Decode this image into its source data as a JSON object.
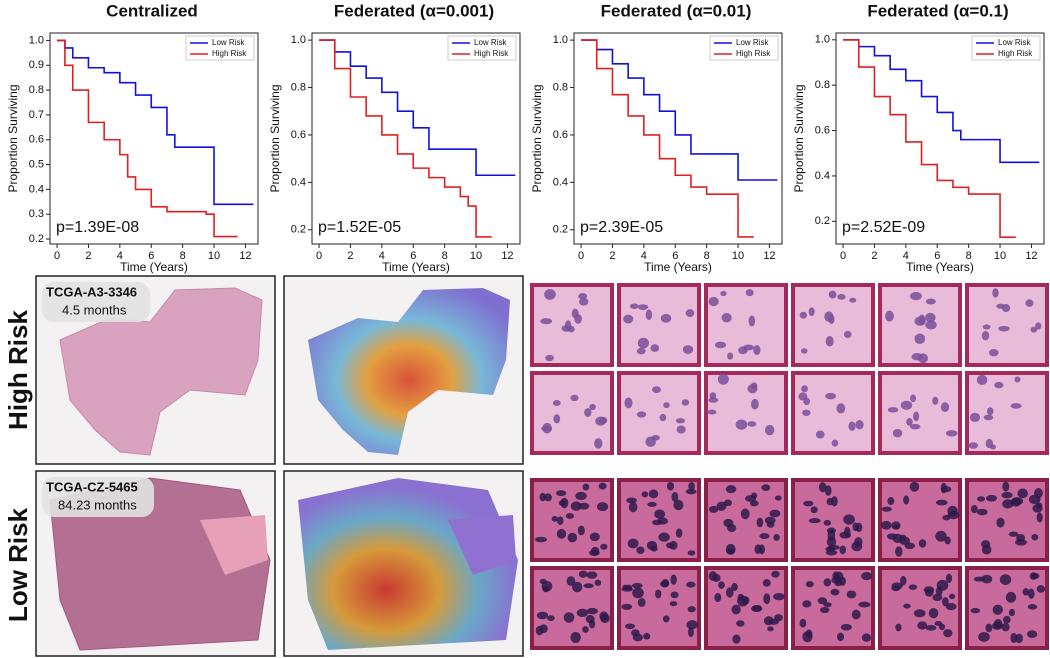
{
  "chart_data": [
    {
      "type": "line",
      "step": true,
      "title": "Centralized",
      "x_label": "Time (Years)",
      "y_label": "Proportion Surviving",
      "annotation": "p=1.39E-08",
      "legend": "upper right",
      "xlim": [
        -0.45,
        12.8
      ],
      "xticks": [
        0,
        2,
        4,
        6,
        8,
        10,
        12
      ],
      "ylim": [
        0.18,
        1.03
      ],
      "yticks": [
        0.2,
        0.3,
        0.4,
        0.5,
        0.6,
        0.7,
        0.8,
        0.9,
        {
          "value": 1,
          "label": "1.0"
        }
      ],
      "series": [
        {
          "name": "Low Risk",
          "color": "#1010e0",
          "x": [
            0,
            0.5,
            1,
            2,
            3,
            4,
            5,
            6,
            7,
            7.5,
            10,
            12.5
          ],
          "values": [
            1,
            0.97,
            0.93,
            0.89,
            0.87,
            0.83,
            0.78,
            0.73,
            0.62,
            0.57,
            0.34,
            0.34
          ]
        },
        {
          "name": "High Risk",
          "color": "#e02020",
          "x": [
            0,
            0.5,
            1,
            2,
            3,
            4,
            4.5,
            5,
            6,
            7,
            9.5,
            10,
            11.5
          ],
          "values": [
            1,
            0.9,
            0.8,
            0.67,
            0.6,
            0.54,
            0.45,
            0.4,
            0.33,
            0.31,
            0.3,
            0.21,
            0.21
          ]
        }
      ]
    },
    {
      "type": "line",
      "step": true,
      "title": "Federated (α=0.001)",
      "x_label": "Time (Years)",
      "y_label": "Proportion Surviving",
      "annotation": "p=1.52E-05",
      "legend": "upper right",
      "xlim": [
        -0.45,
        12.8
      ],
      "xticks": [
        0,
        2,
        4,
        6,
        8,
        10,
        12
      ],
      "ylim": [
        0.14,
        1.03
      ],
      "yticks": [
        0.2,
        0.4,
        0.6,
        0.8,
        {
          "value": 1,
          "label": "1.0"
        }
      ],
      "series": [
        {
          "name": "Low Risk",
          "color": "#1010e0",
          "x": [
            0,
            1,
            2,
            3,
            4,
            5,
            6,
            7,
            10,
            12.5
          ],
          "values": [
            1,
            0.95,
            0.89,
            0.84,
            0.78,
            0.7,
            0.63,
            0.54,
            0.43,
            0.43
          ]
        },
        {
          "name": "High Risk",
          "color": "#e02020",
          "x": [
            0,
            1,
            2,
            3,
            4,
            5,
            6,
            7,
            8,
            9,
            9.5,
            10,
            11
          ],
          "values": [
            1,
            0.88,
            0.76,
            0.68,
            0.6,
            0.52,
            0.46,
            0.42,
            0.38,
            0.34,
            0.3,
            0.17,
            0.17
          ]
        }
      ]
    },
    {
      "type": "line",
      "step": true,
      "title": "Federated (α=0.01)",
      "x_label": "Time (Years)",
      "y_label": "Proportion Surviving",
      "annotation": "p=2.39E-05",
      "legend": "upper right",
      "xlim": [
        -0.45,
        12.8
      ],
      "xticks": [
        0,
        2,
        4,
        6,
        8,
        10,
        12
      ],
      "ylim": [
        0.14,
        1.03
      ],
      "yticks": [
        0.2,
        0.4,
        0.6,
        0.8,
        {
          "value": 1,
          "label": "1.0"
        }
      ],
      "series": [
        {
          "name": "Low Risk",
          "color": "#1010e0",
          "x": [
            0,
            1,
            2,
            3,
            4,
            5,
            6,
            7,
            10,
            12.5
          ],
          "values": [
            1,
            0.96,
            0.9,
            0.84,
            0.77,
            0.7,
            0.6,
            0.52,
            0.41,
            0.41
          ]
        },
        {
          "name": "High Risk",
          "color": "#e02020",
          "x": [
            0,
            1,
            2,
            3,
            4,
            5,
            6,
            7,
            8,
            10,
            11
          ],
          "values": [
            1,
            0.88,
            0.77,
            0.68,
            0.6,
            0.5,
            0.43,
            0.38,
            0.35,
            0.17,
            0.17
          ]
        }
      ]
    },
    {
      "type": "line",
      "step": true,
      "title": "Federated (α=0.1)",
      "x_label": "Time (Years)",
      "y_label": "Proportion Surviving",
      "annotation": "p=2.52E-09",
      "legend": "upper right",
      "xlim": [
        -0.45,
        12.8
      ],
      "xticks": [
        0,
        2,
        4,
        6,
        8,
        10,
        12
      ],
      "ylim": [
        0.1,
        1.03
      ],
      "yticks": [
        0.2,
        0.4,
        0.6,
        0.8,
        {
          "value": 1,
          "label": "1.0"
        }
      ],
      "series": [
        {
          "name": "Low Risk",
          "color": "#1010e0",
          "x": [
            0,
            1,
            2,
            3,
            4,
            5,
            6,
            7,
            7.5,
            10,
            12.5
          ],
          "values": [
            1,
            0.97,
            0.93,
            0.87,
            0.82,
            0.75,
            0.68,
            0.6,
            0.56,
            0.46,
            0.46
          ]
        },
        {
          "name": "High Risk",
          "color": "#e02020",
          "x": [
            0,
            1,
            2,
            3,
            4,
            5,
            6,
            7,
            8,
            10,
            11
          ],
          "values": [
            1,
            0.88,
            0.75,
            0.67,
            0.55,
            0.45,
            0.38,
            0.35,
            0.32,
            0.13,
            0.13
          ]
        }
      ]
    }
  ],
  "rows": [
    {
      "label": "High Risk",
      "slide_id": "TCGA-A3-3346",
      "survival": "4.5 months"
    },
    {
      "label": "Low Risk",
      "slide_id": "TCGA-CZ-5465",
      "survival": "84.23 months"
    }
  ]
}
